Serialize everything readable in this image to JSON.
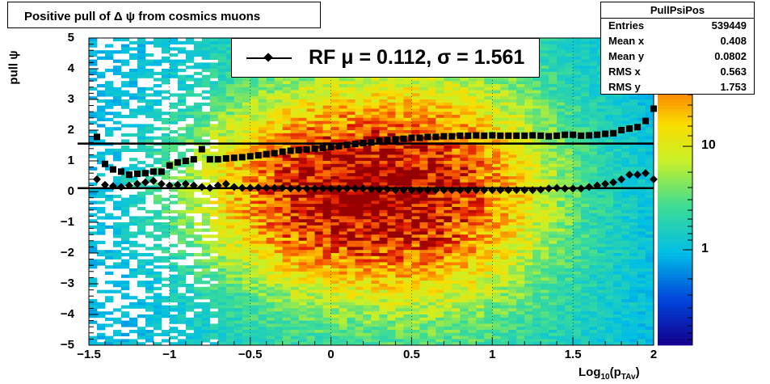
{
  "title": "Positive pull of Δ ψ from cosmics muons",
  "stats": {
    "name": "PullPsiPos",
    "rows": [
      {
        "label": "Entries",
        "value": "539449"
      },
      {
        "label": "Mean x",
        "value": "0.408"
      },
      {
        "label": "Mean y",
        "value": "0.0802"
      },
      {
        "label": "RMS x",
        "value": "0.563"
      },
      {
        "label": "RMS y",
        "value": "1.753"
      }
    ]
  },
  "legend": {
    "text": "RF μ =  0.112, σ =   1.561"
  },
  "axes": {
    "y_title": "pull ψ",
    "x_title_main": "Log",
    "x_title_sub": "10",
    "x_title_mid": "(p",
    "x_title_sub2": "TAv",
    "x_title_end": ")"
  },
  "chart_data": {
    "type": "heatmap",
    "title": "Positive pull of Δ ψ from cosmics muons",
    "xlabel": "Log10(pTAv)",
    "ylabel": "pull ψ",
    "xlim": [
      -1.5,
      2
    ],
    "ylim": [
      -5,
      5
    ],
    "x_ticks": [
      "−1.5",
      "−1",
      "−0.5",
      "0",
      "0.5",
      "1",
      "1.5",
      "2"
    ],
    "y_ticks": [
      "−5",
      "−4",
      "−3",
      "−2",
      "−1",
      "0",
      "1",
      "2",
      "3",
      "4",
      "5"
    ],
    "z_scale": "log",
    "z_ticks": [
      "1",
      "10"
    ],
    "colormap": "rainbow",
    "fit_mean": 0.112,
    "fit_sigma": 1.561,
    "series": [
      {
        "kind": "mean",
        "marker": "diamond",
        "x": [
          -1.45,
          -1.4,
          -1.35,
          -1.3,
          -1.25,
          -1.2,
          -1.15,
          -1.1,
          -1.05,
          -1.0,
          -0.95,
          -0.9,
          -0.85,
          -0.8,
          -0.75,
          -0.7,
          -0.65,
          -0.6,
          -0.55,
          -0.5,
          -0.45,
          -0.4,
          -0.35,
          -0.3,
          -0.25,
          -0.2,
          -0.15,
          -0.1,
          -0.05,
          0.0,
          0.05,
          0.1,
          0.15,
          0.2,
          0.25,
          0.3,
          0.35,
          0.4,
          0.45,
          0.5,
          0.55,
          0.6,
          0.65,
          0.7,
          0.75,
          0.8,
          0.85,
          0.9,
          0.95,
          1.0,
          1.05,
          1.1,
          1.15,
          1.2,
          1.25,
          1.3,
          1.35,
          1.4,
          1.45,
          1.5,
          1.55,
          1.6,
          1.65,
          1.7,
          1.75,
          1.8,
          1.85,
          1.9,
          1.95,
          2.0
        ],
        "y": [
          0.4,
          0.22,
          0.18,
          0.15,
          0.2,
          0.25,
          0.3,
          0.35,
          0.25,
          0.2,
          0.22,
          0.25,
          0.2,
          0.15,
          0.12,
          0.2,
          0.25,
          0.15,
          0.12,
          0.12,
          0.13,
          0.12,
          0.12,
          0.12,
          0.1,
          0.1,
          0.1,
          0.1,
          0.1,
          0.1,
          0.1,
          0.1,
          0.1,
          0.1,
          0.08,
          0.07,
          0.08,
          0.05,
          0.05,
          0.05,
          0.05,
          0.05,
          0.05,
          0.05,
          0.05,
          0.05,
          0.05,
          0.05,
          0.05,
          0.05,
          0.05,
          0.05,
          0.05,
          0.05,
          0.05,
          0.06,
          0.1,
          0.12,
          0.1,
          0.1,
          0.1,
          0.15,
          0.2,
          0.25,
          0.3,
          0.4,
          0.55,
          0.55,
          0.6,
          0.4
        ]
      },
      {
        "kind": "rms",
        "marker": "square",
        "x": [
          -1.45,
          -1.4,
          -1.35,
          -1.3,
          -1.25,
          -1.2,
          -1.15,
          -1.1,
          -1.05,
          -1.0,
          -0.95,
          -0.9,
          -0.85,
          -0.8,
          -0.75,
          -0.7,
          -0.65,
          -0.6,
          -0.55,
          -0.5,
          -0.45,
          -0.4,
          -0.35,
          -0.3,
          -0.25,
          -0.2,
          -0.15,
          -0.1,
          -0.05,
          0.0,
          0.05,
          0.1,
          0.15,
          0.2,
          0.25,
          0.3,
          0.35,
          0.4,
          0.45,
          0.5,
          0.55,
          0.6,
          0.65,
          0.7,
          0.75,
          0.8,
          0.85,
          0.9,
          0.95,
          1.0,
          1.05,
          1.1,
          1.15,
          1.2,
          1.25,
          1.3,
          1.35,
          1.4,
          1.45,
          1.5,
          1.55,
          1.6,
          1.65,
          1.7,
          1.75,
          1.8,
          1.85,
          1.9,
          1.95,
          2.0
        ],
        "y": [
          1.78,
          0.9,
          0.72,
          0.65,
          0.55,
          0.58,
          0.6,
          0.65,
          0.65,
          0.85,
          0.95,
          1.0,
          1.05,
          1.38,
          1.05,
          1.05,
          1.08,
          1.1,
          1.12,
          1.15,
          1.18,
          1.22,
          1.25,
          1.3,
          1.33,
          1.35,
          1.37,
          1.4,
          1.42,
          1.45,
          1.48,
          1.52,
          1.55,
          1.58,
          1.6,
          1.65,
          1.68,
          1.7,
          1.72,
          1.75,
          1.75,
          1.78,
          1.78,
          1.8,
          1.8,
          1.82,
          1.82,
          1.83,
          1.82,
          1.83,
          1.82,
          1.82,
          1.82,
          1.82,
          1.83,
          1.82,
          1.8,
          1.82,
          1.85,
          1.85,
          1.82,
          1.83,
          1.85,
          1.88,
          1.9,
          2.0,
          2.05,
          2.1,
          2.3,
          2.7
        ]
      }
    ],
    "hlines": [
      0.112,
      1.561
    ]
  }
}
